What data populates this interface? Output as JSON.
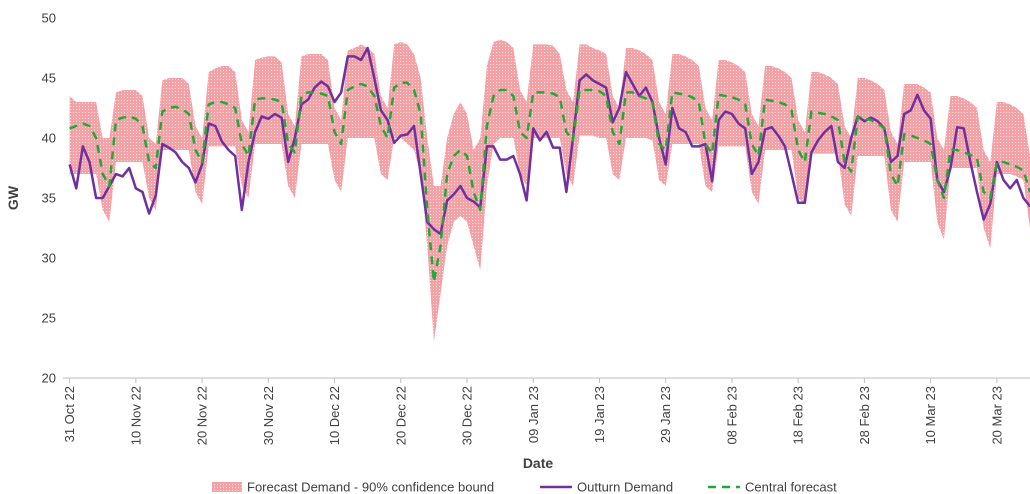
{
  "chart_data": {
    "type": "line",
    "ylabel": "GW",
    "xlabel": "Date",
    "ylim": [
      20,
      50
    ],
    "yticks": [
      20,
      25,
      30,
      35,
      40,
      45,
      50
    ],
    "xlim": [
      "2022-10-30",
      "2023-03-25"
    ],
    "xticks": [
      {
        "value": "2022-10-31",
        "label": "31 Oct 22"
      },
      {
        "value": "2022-11-10",
        "label": "10 Nov 22"
      },
      {
        "value": "2022-11-20",
        "label": "20 Nov 22"
      },
      {
        "value": "2022-11-30",
        "label": "30 Nov 22"
      },
      {
        "value": "2022-12-10",
        "label": "10 Dec 22"
      },
      {
        "value": "2022-12-20",
        "label": "20 Dec 22"
      },
      {
        "value": "2022-12-30",
        "label": "30 Dec 22"
      },
      {
        "value": "2023-01-09",
        "label": "09 Jan 23"
      },
      {
        "value": "2023-01-19",
        "label": "19 Jan 23"
      },
      {
        "value": "2023-01-29",
        "label": "29 Jan 23"
      },
      {
        "value": "2023-02-08",
        "label": "08 Feb 23"
      },
      {
        "value": "2023-02-18",
        "label": "18 Feb 23"
      },
      {
        "value": "2023-02-28",
        "label": "28 Feb 23"
      },
      {
        "value": "2023-03-10",
        "label": "10 Mar 23"
      },
      {
        "value": "2023-03-20",
        "label": "20 Mar 23"
      }
    ],
    "x": [
      "2022-10-31",
      "2022-11-01",
      "2022-11-02",
      "2022-11-03",
      "2022-11-04",
      "2022-11-05",
      "2022-11-06",
      "2022-11-07",
      "2022-11-08",
      "2022-11-09",
      "2022-11-10",
      "2022-11-11",
      "2022-11-12",
      "2022-11-13",
      "2022-11-14",
      "2022-11-15",
      "2022-11-16",
      "2022-11-17",
      "2022-11-18",
      "2022-11-19",
      "2022-11-20",
      "2022-11-21",
      "2022-11-22",
      "2022-11-23",
      "2022-11-24",
      "2022-11-25",
      "2022-11-26",
      "2022-11-27",
      "2022-11-28",
      "2022-11-29",
      "2022-11-30",
      "2022-12-01",
      "2022-12-02",
      "2022-12-03",
      "2022-12-04",
      "2022-12-05",
      "2022-12-06",
      "2022-12-07",
      "2022-12-08",
      "2022-12-09",
      "2022-12-10",
      "2022-12-11",
      "2022-12-12",
      "2022-12-13",
      "2022-12-14",
      "2022-12-15",
      "2022-12-16",
      "2022-12-17",
      "2022-12-18",
      "2022-12-19",
      "2022-12-20",
      "2022-12-21",
      "2022-12-22",
      "2022-12-23",
      "2022-12-24",
      "2022-12-25",
      "2022-12-26",
      "2022-12-27",
      "2022-12-28",
      "2022-12-29",
      "2022-12-30",
      "2022-12-31",
      "2023-01-01",
      "2023-01-02",
      "2023-01-03",
      "2023-01-04",
      "2023-01-05",
      "2023-01-06",
      "2023-01-07",
      "2023-01-08",
      "2023-01-09",
      "2023-01-10",
      "2023-01-11",
      "2023-01-12",
      "2023-01-13",
      "2023-01-14",
      "2023-01-15",
      "2023-01-16",
      "2023-01-17",
      "2023-01-18",
      "2023-01-19",
      "2023-01-20",
      "2023-01-21",
      "2023-01-22",
      "2023-01-23",
      "2023-01-24",
      "2023-01-25",
      "2023-01-26",
      "2023-01-27",
      "2023-01-28",
      "2023-01-29",
      "2023-01-30",
      "2023-01-31",
      "2023-02-01",
      "2023-02-02",
      "2023-02-03",
      "2023-02-04",
      "2023-02-05",
      "2023-02-06",
      "2023-02-07",
      "2023-02-08",
      "2023-02-09",
      "2023-02-10",
      "2023-02-11",
      "2023-02-12",
      "2023-02-13",
      "2023-02-14",
      "2023-02-15",
      "2023-02-16",
      "2023-02-17",
      "2023-02-18",
      "2023-02-19",
      "2023-02-20",
      "2023-02-21",
      "2023-02-22",
      "2023-02-23",
      "2023-02-24",
      "2023-02-25",
      "2023-02-26",
      "2023-02-27",
      "2023-02-28",
      "2023-03-01",
      "2023-03-02",
      "2023-03-03",
      "2023-03-04",
      "2023-03-05",
      "2023-03-06",
      "2023-03-07",
      "2023-03-08",
      "2023-03-09",
      "2023-03-10",
      "2023-03-11",
      "2023-03-12",
      "2023-03-13",
      "2023-03-14",
      "2023-03-15",
      "2023-03-16",
      "2023-03-17",
      "2023-03-18",
      "2023-03-19",
      "2023-03-20",
      "2023-03-21",
      "2023-03-22",
      "2023-03-23",
      "2023-03-24",
      "2023-03-25"
    ],
    "series": [
      {
        "name": "Forecast Demand - 90% confidence bound",
        "kind": "band",
        "color": "#f4a0a4",
        "upper": [
          43.5,
          43,
          43,
          43,
          43,
          40,
          40,
          43.8,
          44,
          44,
          44,
          43.5,
          40,
          39.5,
          44.8,
          45,
          45,
          45,
          44.5,
          41,
          40,
          45.5,
          45.8,
          46,
          46,
          45.5,
          41.5,
          40.5,
          46.5,
          46.7,
          46.8,
          46.8,
          46.3,
          42,
          41,
          46.8,
          47,
          47,
          47,
          46.5,
          42.5,
          41.5,
          47.3,
          47.5,
          47.8,
          47.5,
          47,
          43.5,
          42.5,
          47.8,
          48,
          47.8,
          47,
          45,
          40,
          36,
          36,
          40,
          42,
          43,
          42,
          39,
          40,
          46,
          48,
          48.2,
          48,
          47.5,
          44,
          43,
          47.8,
          47.8,
          47.8,
          47.7,
          47,
          44,
          43,
          47.8,
          47.8,
          47.5,
          47.3,
          47,
          43.5,
          42.5,
          47.5,
          47.5,
          47.3,
          47,
          46.5,
          43,
          42,
          47,
          47,
          46.8,
          46.5,
          46,
          42.5,
          41.5,
          46.5,
          46.5,
          46.3,
          46,
          45.5,
          42,
          41,
          46,
          46,
          45.8,
          45.5,
          45,
          41.5,
          40.5,
          45.5,
          45.5,
          45.3,
          45,
          44.5,
          41,
          40,
          45,
          45,
          44.8,
          44.5,
          44,
          40.5,
          39.5,
          44.5,
          44.5,
          44.5,
          44.2,
          43.8,
          40,
          39,
          43.5,
          43.5,
          43.3,
          43,
          42.5,
          39,
          38,
          43,
          43,
          42.8,
          42.5,
          42,
          38.5
        ],
        "lower": [
          37,
          37,
          37,
          37,
          37,
          34,
          33,
          38,
          38,
          38,
          38,
          38,
          35,
          34,
          39,
          39,
          39,
          39,
          39,
          35.5,
          34.5,
          39.3,
          39.3,
          39.3,
          39.3,
          39.3,
          36,
          35,
          39.5,
          39.5,
          39.5,
          39.5,
          39.5,
          36,
          35,
          39.5,
          39.5,
          39.5,
          39.5,
          39.5,
          36.5,
          35.5,
          40,
          40,
          40,
          40,
          40,
          37,
          36.5,
          40,
          40,
          39.5,
          39,
          37,
          31,
          23,
          27,
          31,
          33,
          33.5,
          33,
          31,
          29,
          36,
          39.5,
          40,
          40,
          40,
          37,
          36,
          40,
          40,
          40,
          40,
          40,
          37,
          36,
          40.2,
          40.2,
          40.2,
          40,
          40,
          37,
          36.5,
          40,
          40,
          40,
          40,
          39.8,
          36.5,
          36,
          39.5,
          39.5,
          39.5,
          39.5,
          39.5,
          36,
          35.5,
          39.3,
          39.3,
          39.3,
          39.3,
          39.3,
          35.5,
          34.5,
          39,
          39,
          39,
          39,
          39,
          35,
          34.5,
          38.7,
          38.7,
          38.7,
          38.7,
          38.7,
          34.5,
          33.5,
          38.5,
          38.5,
          38.5,
          38.5,
          38.5,
          34,
          33,
          38,
          38,
          38,
          38,
          38,
          33,
          31.5,
          37.5,
          37.5,
          37.5,
          37.5,
          37.5,
          32.5,
          30.8,
          37,
          37,
          37,
          36.8,
          36.5,
          32.5
        ]
      },
      {
        "name": "Outturn Demand",
        "kind": "line",
        "color": "#7030a0",
        "values": [
          37.8,
          35.8,
          39.3,
          38,
          35,
          35,
          36,
          37,
          36.8,
          37.5,
          35.8,
          35.5,
          33.7,
          35.2,
          39.5,
          39.2,
          38.8,
          38,
          37.5,
          36.3,
          37.8,
          41.2,
          41,
          39.7,
          39,
          38.5,
          34,
          38,
          40.5,
          41.8,
          41.6,
          42,
          41.7,
          38,
          40,
          42.8,
          43.2,
          44.2,
          44.7,
          44.3,
          43,
          43.8,
          46.8,
          46.8,
          46.5,
          47.5,
          45,
          42.3,
          41.5,
          39.6,
          40.2,
          40.3,
          41,
          37,
          33,
          32.4,
          32,
          34.8,
          35.3,
          36,
          35,
          34.7,
          34.2,
          39.3,
          39.3,
          38.2,
          38.2,
          38.5,
          37,
          34.8,
          40.8,
          39.8,
          40.5,
          39.2,
          39.2,
          35.5,
          40,
          44.8,
          45.3,
          44.8,
          44.5,
          44.2,
          41.3,
          42.5,
          45.5,
          44.5,
          43.5,
          44.2,
          43,
          40,
          37.8,
          42.5,
          40.8,
          40.5,
          39.3,
          39.3,
          39.5,
          36.4,
          41.5,
          42.2,
          42,
          41.2,
          40.8,
          37,
          38,
          40.7,
          40.9,
          40.2,
          39.3,
          37,
          34.6,
          34.6,
          38.8,
          39.8,
          40.5,
          41,
          38,
          37.5,
          40,
          41.8,
          41.4,
          41.7,
          41.4,
          40.8,
          38,
          38.5,
          42,
          42.3,
          43.6,
          42.3,
          41.6,
          36.5,
          35.5,
          37.5,
          40.9,
          40.8,
          38,
          35.5,
          33.2,
          34.5,
          38,
          36.5,
          35.8,
          36.5,
          35,
          34.3
        ]
      },
      {
        "name": "Central forecast",
        "kind": "dashed",
        "color": "#22a83a",
        "values": [
          40.8,
          41,
          41.2,
          41,
          40,
          37,
          36,
          41.5,
          41.7,
          41.8,
          41.6,
          41,
          38,
          37.5,
          42.2,
          42.5,
          42.6,
          42.4,
          42,
          39,
          38,
          42.8,
          43,
          43,
          42.8,
          42.5,
          39.5,
          38.5,
          43.2,
          43.3,
          43.3,
          43.2,
          43,
          39.5,
          38.8,
          43.5,
          43.8,
          43.8,
          43.7,
          43.5,
          40.5,
          39.5,
          44,
          44.3,
          44.5,
          44.3,
          43.5,
          41,
          40,
          44.2,
          44.6,
          44.6,
          44,
          42,
          34,
          28,
          31,
          37,
          38.5,
          39,
          38.5,
          35.5,
          34,
          41,
          43.5,
          44,
          44,
          43.5,
          40.5,
          40,
          43.8,
          43.8,
          43.8,
          43.7,
          43.4,
          40.5,
          39.8,
          44,
          44,
          44,
          43.9,
          43.5,
          40.5,
          39.5,
          43.8,
          43.8,
          43.5,
          43.3,
          43,
          39.5,
          39,
          43.8,
          43.7,
          43.6,
          43.4,
          43,
          39.5,
          38.7,
          43.6,
          43.5,
          43.4,
          43.2,
          42.8,
          39.5,
          38.5,
          43.2,
          43.1,
          43,
          42.8,
          42.3,
          39,
          38,
          42.2,
          42.1,
          42,
          41.8,
          41.5,
          38,
          37.2,
          41.8,
          41.6,
          41.5,
          41.2,
          40.8,
          37,
          36,
          40.3,
          40.2,
          40,
          39.8,
          39.5,
          36.5,
          35,
          39,
          39,
          38.8,
          38.6,
          38.3,
          35.5,
          35,
          38,
          38,
          37.8,
          37.6,
          37.3,
          35.5
        ]
      }
    ]
  }
}
